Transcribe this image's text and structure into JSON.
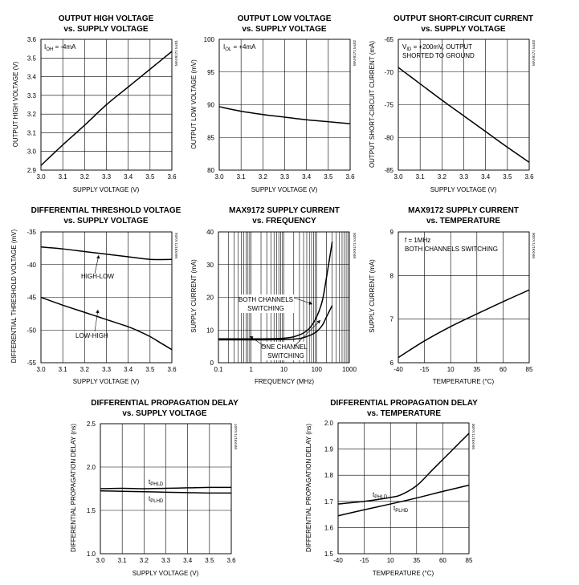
{
  "chart_data": [
    {
      "id": "c1",
      "type": "line",
      "title": [
        "OUTPUT HIGH VOLTAGE",
        "vs. SUPPLY VOLTAGE"
      ],
      "xlabel": "SUPPLY VOLTAGE (V)",
      "ylabel": "OUTPUT HIGH VOLTAGE (V)",
      "xlim": [
        3.0,
        3.6
      ],
      "ylim": [
        2.9,
        3.6
      ],
      "xticks": [
        3.0,
        3.1,
        3.2,
        3.3,
        3.4,
        3.5,
        3.6
      ],
      "yticks": [
        2.9,
        3.0,
        3.1,
        3.2,
        3.3,
        3.4,
        3.5,
        3.6
      ],
      "xtick_labels": [
        "3.0",
        "3.1",
        "3.2",
        "3.3",
        "3.4",
        "3.5",
        "3.6"
      ],
      "ytick_labels": [
        "2.9",
        "3.0",
        "3.1",
        "3.2",
        "3.3",
        "3.4",
        "3.5",
        "3.6"
      ],
      "annotation": "I_OH = -4mA",
      "side_id": "MAX9171 toc01",
      "series": [
        {
          "name": "VOH",
          "x": [
            3.0,
            3.1,
            3.2,
            3.3,
            3.4,
            3.5,
            3.6
          ],
          "y": [
            2.925,
            3.035,
            3.14,
            3.25,
            3.345,
            3.44,
            3.535
          ]
        }
      ]
    },
    {
      "id": "c2",
      "type": "line",
      "title": [
        "OUTPUT LOW VOLTAGE",
        "vs. SUPPLY VOLTAGE"
      ],
      "xlabel": "SUPPLY VOLTAGE (V)",
      "ylabel": "OUTPUT LOW VOLTAGE (mV)",
      "xlim": [
        3.0,
        3.6
      ],
      "ylim": [
        80,
        100
      ],
      "xticks": [
        3.0,
        3.1,
        3.2,
        3.3,
        3.4,
        3.5,
        3.6
      ],
      "yticks": [
        80,
        85,
        90,
        95,
        100
      ],
      "xtick_labels": [
        "3.0",
        "3.1",
        "3.2",
        "3.3",
        "3.4",
        "3.5",
        "3.6"
      ],
      "ytick_labels": [
        "80",
        "85",
        "90",
        "95",
        "100"
      ],
      "annotation": "I_OL = +4mA",
      "side_id": "MAX9171 toc02",
      "series": [
        {
          "name": "VOL",
          "x": [
            3.0,
            3.1,
            3.2,
            3.3,
            3.4,
            3.5,
            3.6
          ],
          "y": [
            89.7,
            89.0,
            88.5,
            88.1,
            87.7,
            87.4,
            87.1
          ]
        }
      ]
    },
    {
      "id": "c3",
      "type": "line",
      "title": [
        "OUTPUT SHORT-CIRCUIT CURRENT",
        "vs. SUPPLY VOLTAGE"
      ],
      "xlabel": "SUPPLY VOLTAGE (V)",
      "ylabel": "OUTPUT SHORT-CIRCUIT CURRENT (mA)",
      "xlim": [
        3.0,
        3.6
      ],
      "ylim": [
        -85,
        -65
      ],
      "xticks": [
        3.0,
        3.1,
        3.2,
        3.3,
        3.4,
        3.5,
        3.6
      ],
      "yticks": [
        -85,
        -80,
        -75,
        -70,
        -65
      ],
      "xtick_labels": [
        "3.0",
        "3.1",
        "3.2",
        "3.3",
        "3.4",
        "3.5",
        "3.6"
      ],
      "ytick_labels": [
        "-85",
        "-80",
        "-75",
        "-70",
        "-65"
      ],
      "annotation": [
        "V_ID = +200mV, OUTPUT",
        "SHORTED TO GROUND"
      ],
      "side_id": "MAX9171 toc03",
      "series": [
        {
          "name": "IOS",
          "x": [
            3.0,
            3.1,
            3.2,
            3.3,
            3.4,
            3.5,
            3.6
          ],
          "y": [
            -69.3,
            -71.8,
            -74.3,
            -76.7,
            -79.1,
            -81.5,
            -83.8
          ]
        }
      ]
    },
    {
      "id": "c4",
      "type": "line",
      "title": [
        "DIFFERENTIAL THRESHOLD VOLTAGE",
        "vs. SUPPLY VOLTAGE"
      ],
      "xlabel": "SUPPLY VOLTAGE (V)",
      "ylabel": "DIFFERENTIAL THRESHOLD VOLTAGE (mV)",
      "xlim": [
        3.0,
        3.6
      ],
      "ylim": [
        -55,
        -35
      ],
      "xticks": [
        3.0,
        3.1,
        3.2,
        3.3,
        3.4,
        3.5,
        3.6
      ],
      "yticks": [
        -55,
        -50,
        -45,
        -40,
        -35
      ],
      "xtick_labels": [
        "3.0",
        "3.1",
        "3.2",
        "3.3",
        "3.4",
        "3.5",
        "3.6"
      ],
      "ytick_labels": [
        "-55",
        "-50",
        "-45",
        "-40",
        "-35"
      ],
      "side_id": "MAX9171 toc04",
      "series": [
        {
          "name": "HIGH-LOW",
          "x": [
            3.0,
            3.1,
            3.2,
            3.3,
            3.4,
            3.5,
            3.6
          ],
          "y": [
            -37.3,
            -37.6,
            -38.0,
            -38.4,
            -38.8,
            -39.2,
            -39.2
          ]
        },
        {
          "name": "LOW-HIGH",
          "x": [
            3.0,
            3.1,
            3.2,
            3.3,
            3.4,
            3.45,
            3.5,
            3.55,
            3.6
          ],
          "y": [
            -45.0,
            -46.2,
            -47.3,
            -48.4,
            -49.5,
            -50.2,
            -51.0,
            -52.0,
            -53.0
          ]
        }
      ]
    },
    {
      "id": "c5",
      "type": "line",
      "title": [
        "MAX9172 SUPPLY CURRENT",
        "vs. FREQUENCY"
      ],
      "xlabel": "FREQUENCY (MHz)",
      "ylabel": "SUPPLY CURRENT (mA)",
      "xscale": "log",
      "xlim": [
        0.1,
        1000
      ],
      "ylim": [
        0,
        40
      ],
      "xticks": [
        0.1,
        1,
        10,
        100,
        1000
      ],
      "yticks": [
        0,
        10,
        20,
        30,
        40
      ],
      "xtick_labels": [
        "0.1",
        "1",
        "10",
        "100",
        "1000"
      ],
      "ytick_labels": [
        "0",
        "10",
        "20",
        "30",
        "40"
      ],
      "side_id": "MAX9171 toc05",
      "series": [
        {
          "name": "BOTH CHANNELS SWITCHING",
          "x": [
            0.1,
            1,
            10,
            30,
            60,
            100,
            150,
            200,
            250,
            300
          ],
          "y": [
            7.3,
            7.3,
            7.5,
            8.5,
            10.5,
            14.0,
            19.0,
            26.0,
            32.0,
            37.0
          ]
        },
        {
          "name": "ONE CHANNEL SWITCHING",
          "x": [
            0.1,
            1,
            10,
            30,
            60,
            100,
            150,
            200,
            300
          ],
          "y": [
            7.0,
            7.0,
            7.1,
            7.4,
            8.3,
            9.5,
            11.5,
            14.0,
            17.5
          ]
        }
      ],
      "labels": [
        [
          "BOTH CHANNELS",
          "SWITCHING"
        ],
        [
          "ONE CHANNEL",
          "SWITCHING"
        ]
      ]
    },
    {
      "id": "c6",
      "type": "line",
      "title": [
        "MAX9172 SUPPLY CURRENT",
        "vs. TEMPERATURE"
      ],
      "xlabel": "TEMPERATURE (°C)",
      "ylabel": "SUPPLY CURRENT (mA)",
      "xlim": [
        -40,
        85
      ],
      "ylim": [
        6,
        9
      ],
      "xticks": [
        -40,
        -15,
        10,
        35,
        60,
        85
      ],
      "yticks": [
        6,
        7,
        8,
        9
      ],
      "xtick_labels": [
        "-40",
        "-15",
        "10",
        "35",
        "60",
        "85"
      ],
      "ytick_labels": [
        "6",
        "7",
        "8",
        "9"
      ],
      "annotation": [
        "f = 1MHz",
        "BOTH CHANNELS SWITCHING"
      ],
      "side_id": "MAX9171 toc06",
      "series": [
        {
          "name": "ICC",
          "x": [
            -40,
            -15,
            10,
            35,
            60,
            85
          ],
          "y": [
            6.12,
            6.5,
            6.83,
            7.12,
            7.4,
            7.67
          ]
        }
      ]
    },
    {
      "id": "c7",
      "type": "line",
      "title": [
        "DIFFERENTIAL PROPAGATION DELAY",
        "vs. SUPPLY VOLTAGE"
      ],
      "xlabel": "SUPPLY VOLTAGE (V)",
      "ylabel": "DIFFERENTIAL PROPAGATION DELAY (ns)",
      "xlim": [
        3.0,
        3.6
      ],
      "ylim": [
        1.0,
        2.5
      ],
      "xticks": [
        3.0,
        3.1,
        3.2,
        3.3,
        3.4,
        3.5,
        3.6
      ],
      "yticks": [
        1.0,
        1.5,
        2.0,
        2.5
      ],
      "xtick_labels": [
        "3.0",
        "3.1",
        "3.2",
        "3.3",
        "3.4",
        "3.5",
        "3.6"
      ],
      "ytick_labels": [
        "1.0",
        "1.5",
        "2.0",
        "2.5"
      ],
      "side_id": "MAX9171 toc07",
      "series": [
        {
          "name": "tPHLD",
          "x": [
            3.0,
            3.1,
            3.2,
            3.3,
            3.4,
            3.5,
            3.6
          ],
          "y": [
            1.75,
            1.755,
            1.75,
            1.755,
            1.76,
            1.765,
            1.765
          ]
        },
        {
          "name": "tPLHD",
          "x": [
            3.0,
            3.1,
            3.2,
            3.3,
            3.4,
            3.5,
            3.6
          ],
          "y": [
            1.725,
            1.72,
            1.715,
            1.71,
            1.705,
            1.7,
            1.7
          ]
        }
      ]
    },
    {
      "id": "c8",
      "type": "line",
      "title": [
        "DIFFERENTIAL PROPAGATION DELAY",
        "vs. TEMPERATURE"
      ],
      "xlabel": "TEMPERATURE (°C)",
      "ylabel": "DIFFERENTIAL PROPAGATION DELAY (ns)",
      "xlim": [
        -40,
        85
      ],
      "ylim": [
        1.5,
        2.0
      ],
      "xticks": [
        -40,
        -15,
        10,
        35,
        60,
        85
      ],
      "yticks": [
        1.5,
        1.6,
        1.7,
        1.8,
        1.9,
        2.0
      ],
      "xtick_labels": [
        "-40",
        "-15",
        "10",
        "35",
        "60",
        "85"
      ],
      "ytick_labels": [
        "1.5",
        "1.6",
        "1.7",
        "1.8",
        "1.9",
        "2.0"
      ],
      "side_id": "MAX9171 toc08",
      "series": [
        {
          "name": "tPHLD",
          "x": [
            -40,
            -15,
            10,
            20,
            35,
            50,
            60,
            75,
            85
          ],
          "y": [
            1.69,
            1.7,
            1.715,
            1.725,
            1.76,
            1.82,
            1.86,
            1.92,
            1.96
          ]
        },
        {
          "name": "tPLHD",
          "x": [
            -40,
            -15,
            10,
            35,
            60,
            85
          ],
          "y": [
            1.645,
            1.668,
            1.69,
            1.713,
            1.738,
            1.762
          ]
        }
      ]
    }
  ]
}
